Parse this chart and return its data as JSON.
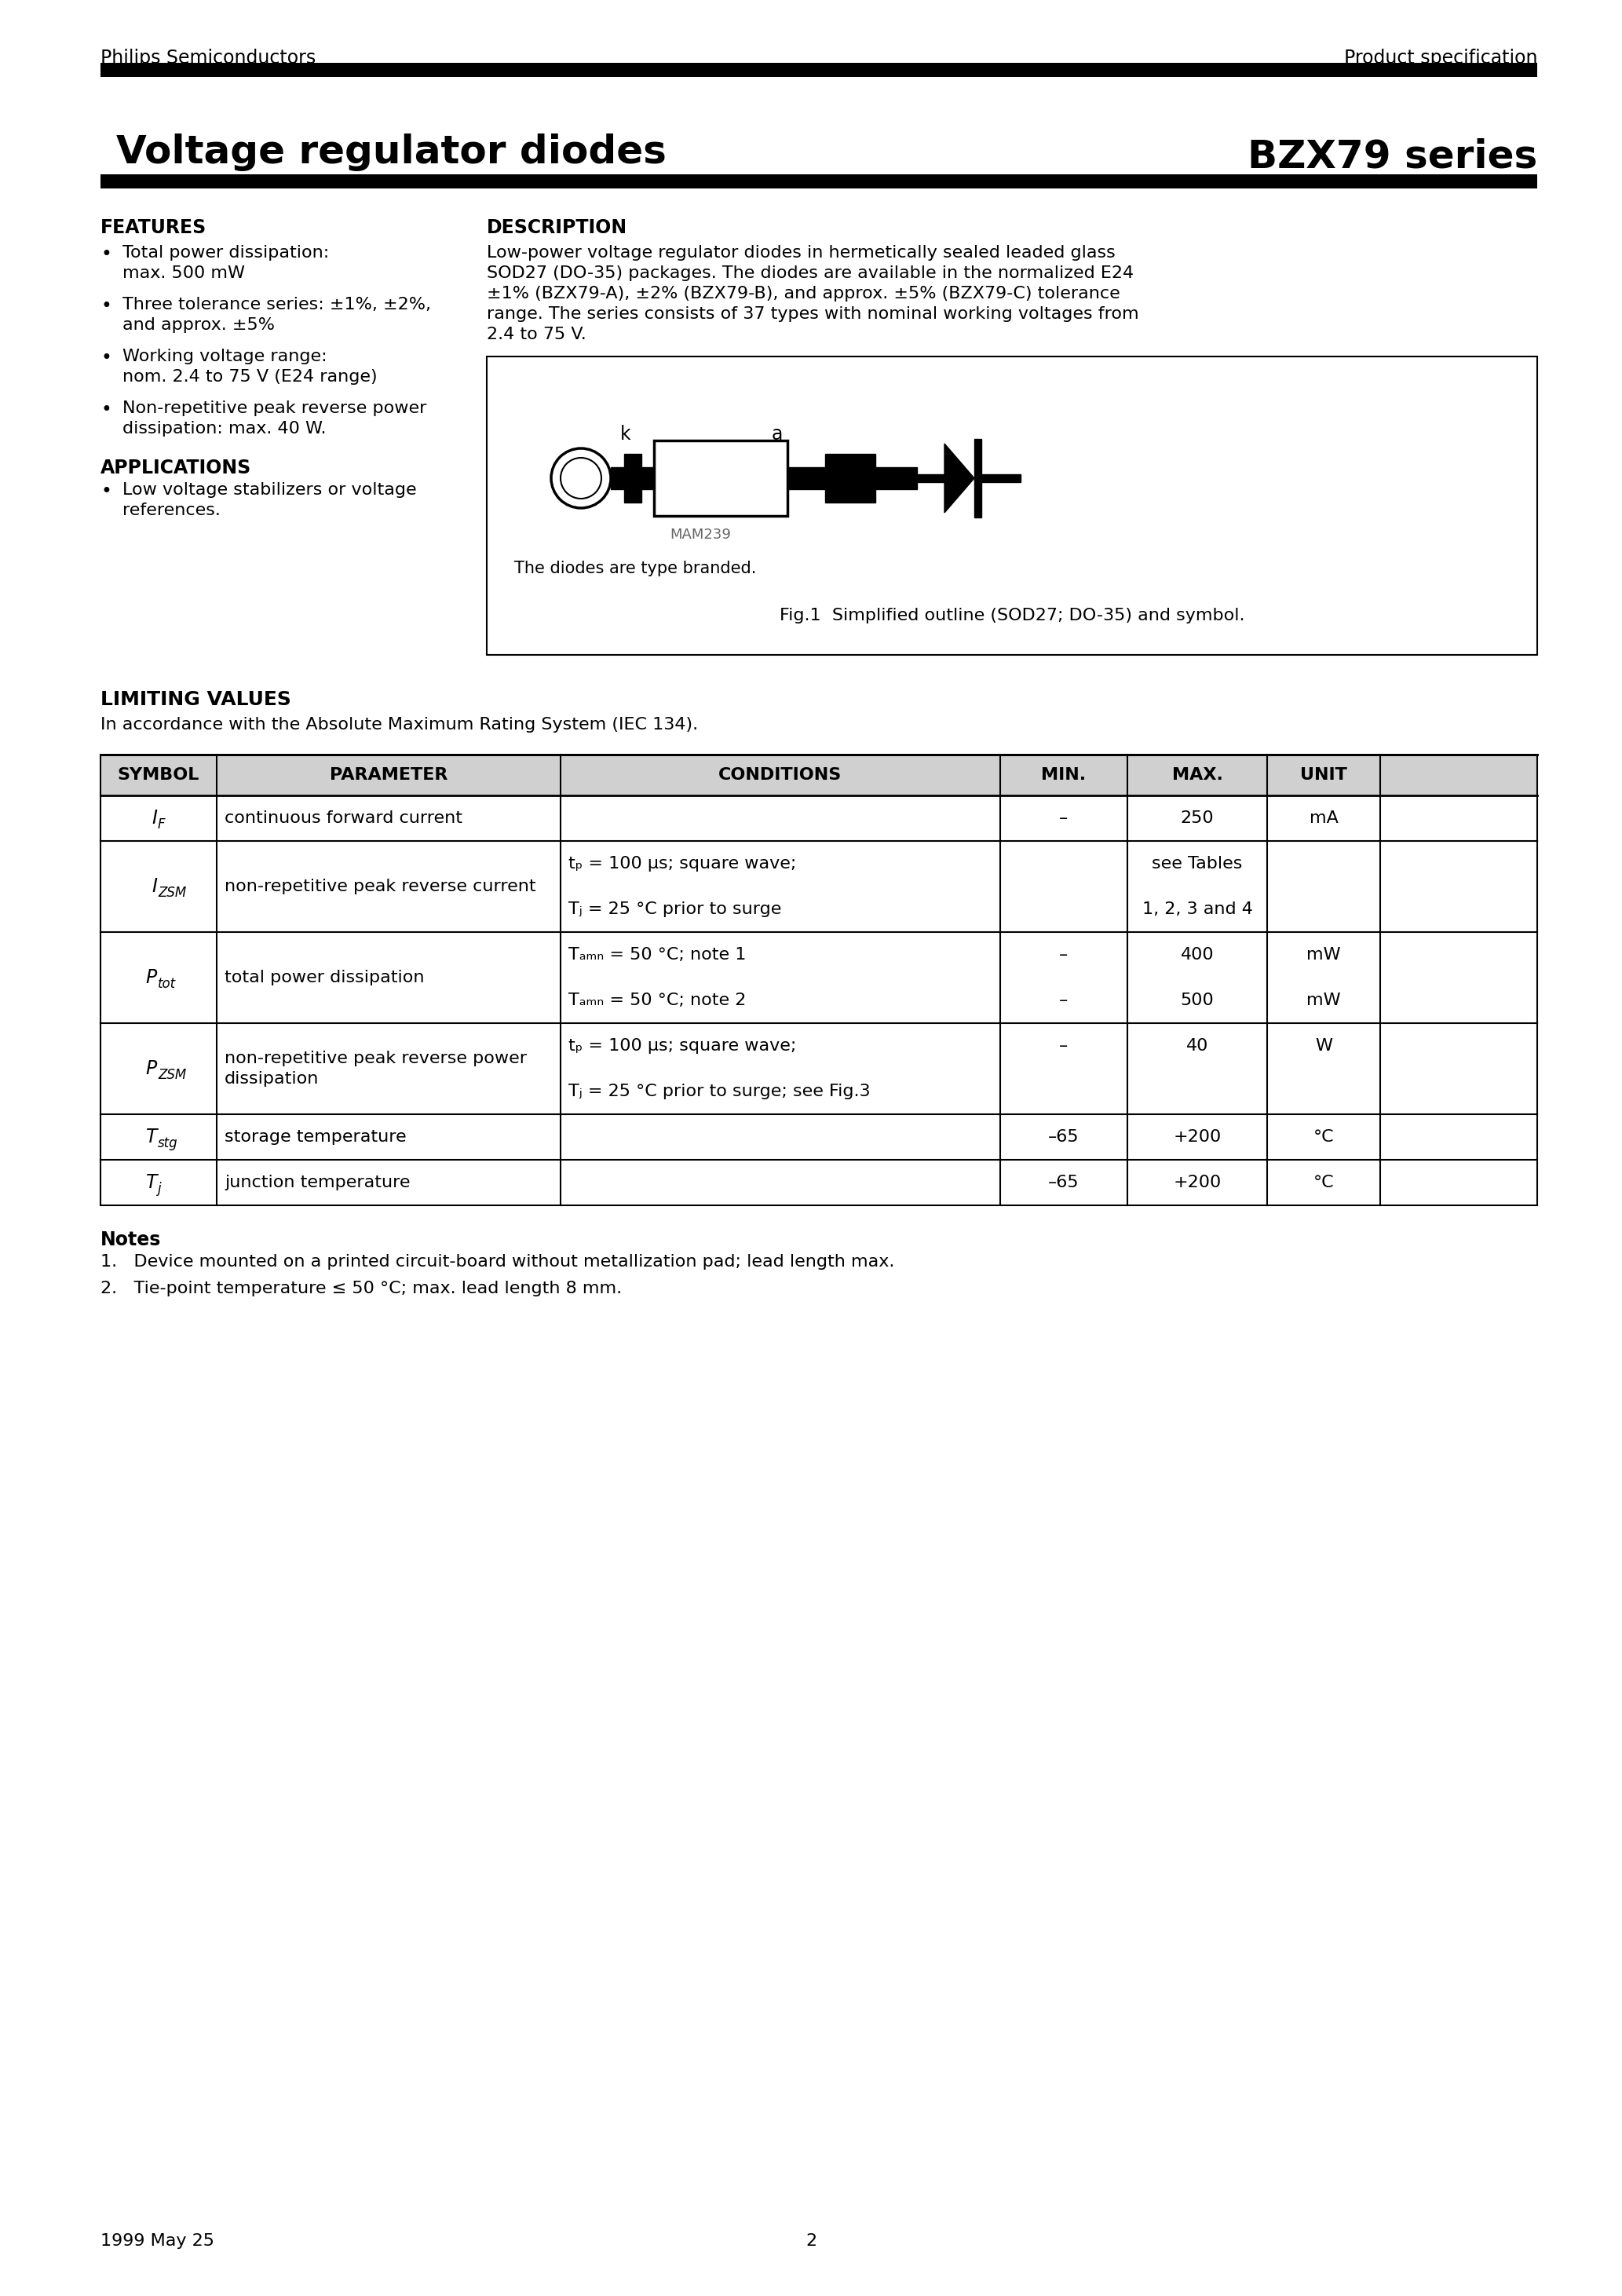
{
  "page_title_left": "Voltage regulator diodes",
  "page_title_right": "BZX79 series",
  "header_left": "Philips Semiconductors",
  "header_right": "Product specification",
  "footer_left": "1999 May 25",
  "footer_center": "2",
  "features_title": "FEATURES",
  "features_items": [
    "Total power dissipation:\nmax. 500 mW",
    "Three tolerance series: ±1%, ±2%,\nand approx. ±5%",
    "Working voltage range:\nnom. 2.4 to 75 V (E24 range)",
    "Non-repetitive peak reverse power\ndissipation: max. 40 W."
  ],
  "applications_title": "APPLICATIONS",
  "applications_items": [
    "Low voltage stabilizers or voltage\nreferences."
  ],
  "description_title": "DESCRIPTION",
  "description_text": "Low-power voltage regulator diodes in hermetically sealed leaded glass\nSOD27 (DO-35) packages. The diodes are available in the normalized E24\n±1% (BZX79-A), ±2% (BZX79-B), and approx. ±5% (BZX79-C) tolerance\nrange. The series consists of 37 types with nominal working voltages from\n2.4 to 75 V.",
  "fig_caption1": "The diodes are type branded.",
  "fig_caption2": "Fig.1  Simplified outline (SOD27; DO-35) and symbol.",
  "fig_ref": "MAM239",
  "limiting_values_title": "LIMITING VALUES",
  "limiting_values_subtitle": "In accordance with the Absolute Maximum Rating System (IEC 134).",
  "table_headers": [
    "SYMBOL",
    "PARAMETER",
    "CONDITIONS",
    "MIN.",
    "MAX.",
    "UNIT"
  ],
  "notes_title": "Notes",
  "notes": [
    "1.   Device mounted on a printed circuit-board without metallization pad; lead length max.",
    "2.   Tie-point temperature ≤ 50 °C; max. lead length 8 mm."
  ],
  "bg_color": "#ffffff",
  "text_color": "#000000"
}
